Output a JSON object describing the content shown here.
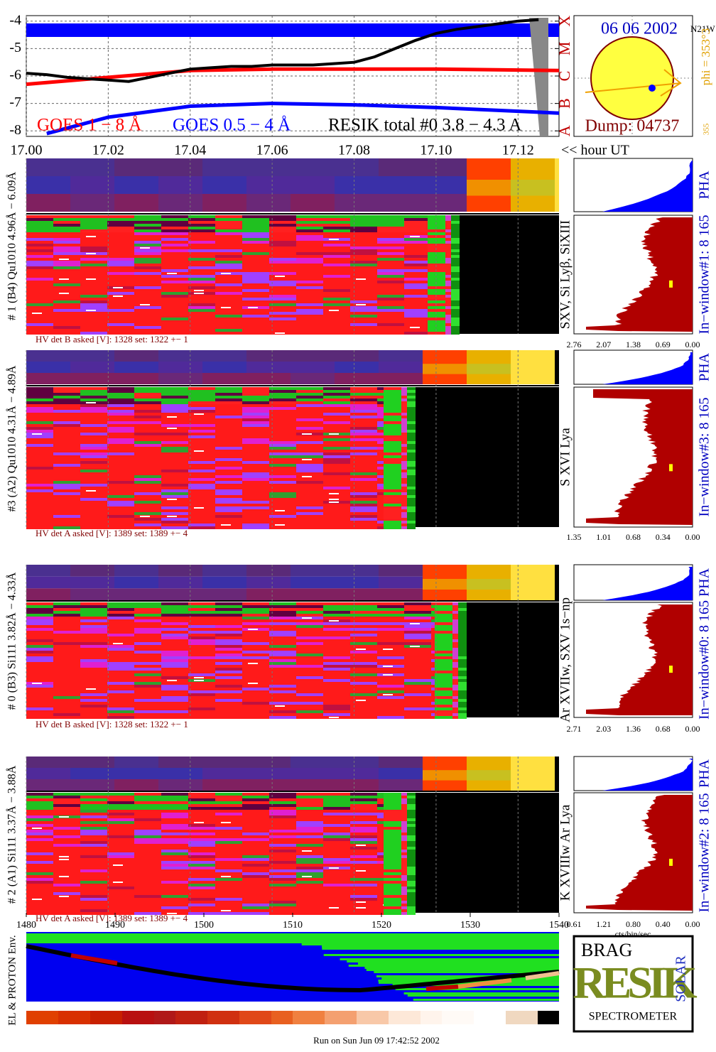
{
  "chart_data": {
    "type": "line",
    "x_label": "<< hour UT",
    "xlim": [
      17.0,
      17.13
    ],
    "xticks": [
      {
        "value": 17.0,
        "label": "17.00"
      },
      {
        "value": 17.02,
        "label": "17.02"
      },
      {
        "value": 17.04,
        "label": "17.04"
      },
      {
        "value": 17.06,
        "label": "17.06"
      },
      {
        "value": 17.08,
        "label": "17.08"
      },
      {
        "value": 17.1,
        "label": "17.10"
      },
      {
        "value": 17.12,
        "label": "17.12"
      }
    ],
    "ylim": [
      -8.2,
      -3.8
    ],
    "yticks": [
      -4,
      -5,
      -6,
      -7,
      -8
    ],
    "y2lim": [
      -8.2,
      -3.8
    ],
    "y2ticks": [
      {
        "value": -4,
        "label": "X"
      },
      {
        "value": -5,
        "label": "M"
      },
      {
        "value": -6,
        "label": "C"
      },
      {
        "value": -7,
        "label": "B"
      },
      {
        "value": -8,
        "label": "A"
      }
    ],
    "grid": true,
    "series": [
      {
        "name": "GOES 1 − 8 Å",
        "color": "#ff0000",
        "x": [
          17.0,
          17.02,
          17.04,
          17.06,
          17.08,
          17.1,
          17.13
        ],
        "values": [
          -6.3,
          -6.05,
          -5.8,
          -5.75,
          -5.75,
          -5.75,
          -5.8
        ]
      },
      {
        "name": "GOES 0.5 − 4 Å",
        "color": "#0000ff",
        "x": [
          17.005,
          17.02,
          17.04,
          17.06,
          17.08,
          17.1,
          17.13
        ],
        "values": [
          -8.1,
          -7.5,
          -7.1,
          -7.0,
          -7.05,
          -7.15,
          -7.35
        ]
      },
      {
        "name": "RESIK total #0  3.8 − 4.3 A",
        "color": "#000000",
        "x": [
          17.0,
          17.005,
          17.01,
          17.015,
          17.02,
          17.025,
          17.03,
          17.035,
          17.04,
          17.045,
          17.05,
          17.055,
          17.06,
          17.065,
          17.07,
          17.075,
          17.08,
          17.085,
          17.09,
          17.095,
          17.1,
          17.105,
          17.11,
          17.115,
          17.12,
          17.125
        ],
        "values": [
          -5.9,
          -5.95,
          -6.05,
          -6.1,
          -6.15,
          -6.2,
          -6.05,
          -5.9,
          -5.75,
          -5.7,
          -5.65,
          -5.65,
          -5.6,
          -5.6,
          -5.6,
          -5.55,
          -5.5,
          -5.3,
          -5.0,
          -4.7,
          -4.45,
          -4.3,
          -4.2,
          -4.1,
          -4.0,
          -3.95
        ]
      }
    ]
  },
  "disk": {
    "date": "06 06 2002",
    "position": "N21W",
    "phi": "phi = 353°3",
    "tick": "355",
    "dump": "Dump: 04737"
  },
  "panels": [
    {
      "label": "# 1 (B4) Qu1010 4.96Å − 6.09Å",
      "lines": "SXV, Si Lyβ, SiXIII",
      "window": "In−window#1:   8 165",
      "pha": "PHA",
      "hv": "HV det B asked [V]:  1328  set:  1322   +−    1",
      "scale": [
        "2.76",
        "2.07",
        "1.38",
        "0.69",
        "0.00"
      ]
    },
    {
      "label": "#3 (A2) Qu1010  4.31Å − 4.89Å",
      "lines": "S XVI Lya",
      "window": "In−window#3:   8 165",
      "pha": "PHA",
      "hv": "HV det A asked [V]:  1389  set:  1389   +−    4",
      "scale": [
        "1.35",
        "1.01",
        "0.68",
        "0.34",
        "0.00"
      ]
    },
    {
      "label": "# 0 (B3) Si111  3.82Å − 4.33Å",
      "lines": "Ar XVIIw,  SXV 1s−np",
      "window": "In−window#0:   8 165",
      "pha": "PHA",
      "hv": "HV det B asked [V]:  1328  set:  1322   +−    1",
      "scale": [
        "2.71",
        "2.03",
        "1.36",
        "0.68",
        "0.00"
      ]
    },
    {
      "label": "# 2 (A1) Si111  3.37Å − 3.88Å",
      "lines": "K XVIIIw   Ar Lya",
      "window": "In−window#2:   8 165",
      "pha": "PHA",
      "hv": "HV det A asked [V]:  1389  set:  1389   +−    4",
      "scale": [
        "0.61",
        "1.21",
        "0.80",
        "0.40",
        "0.00"
      ]
    }
  ],
  "bin_axis": {
    "xlim": [
      1480,
      1540
    ],
    "xticks": [
      1480,
      1490,
      1500,
      1510,
      1520,
      1530,
      1540
    ]
  },
  "units": "cts/bin/sec",
  "env_label": "EL & PROTON Env.",
  "logo": {
    "top": "BRAG",
    "word": "RESIK",
    "side": "SOLAR",
    "bottom": "SPECTROMETER"
  },
  "footer": "Run on Sun Jun 09 17:42:52 2002"
}
